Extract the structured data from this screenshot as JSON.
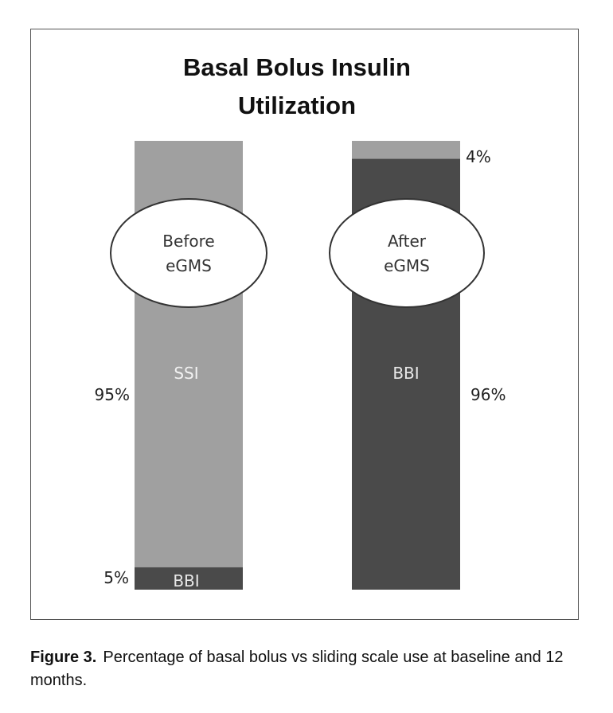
{
  "chart_data": {
    "type": "bar",
    "stacked": true,
    "title": [
      "Basal Bolus Insulin",
      "Utilization"
    ],
    "categories": [
      "Before eGMS",
      "After eGMS"
    ],
    "category_labels": [
      [
        "Before",
        "eGMS"
      ],
      [
        "After",
        "eGMS"
      ]
    ],
    "series": [
      {
        "name": "BBI",
        "values": [
          5,
          96
        ],
        "color": "#4a4a4a"
      },
      {
        "name": "SSI",
        "values": [
          95,
          4
        ],
        "color": "#a0a0a0"
      }
    ],
    "segment_labels": {
      "left_ssi": "SSI",
      "left_bbi": "BBI",
      "right_bbi": "BBI"
    },
    "data_labels": {
      "left_ssi": "95%",
      "left_bbi": "5%",
      "right_ssi": "4%",
      "right_bbi": "96%"
    },
    "ylim": [
      0,
      100
    ],
    "grid": false,
    "legend": "none"
  },
  "caption": {
    "label": "Figure 3.",
    "text": "Percentage of basal bolus vs sliding scale use at baseline and 12 months."
  }
}
